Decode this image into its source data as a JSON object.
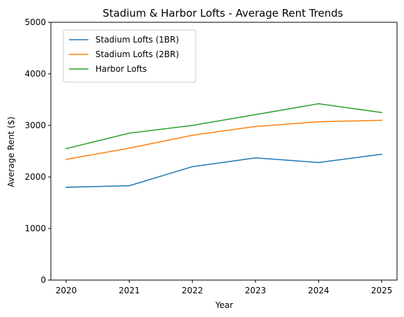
{
  "chart_data": {
    "type": "line",
    "title": "Stadium & Harbor Lofts - Average Rent Trends",
    "xlabel": "Year",
    "ylabel": "Average Rent ($)",
    "x": [
      "2020",
      "2021",
      "2022",
      "2023",
      "2024",
      "2025"
    ],
    "ylim": [
      0,
      5000
    ],
    "yticks": [
      "0",
      "1000",
      "2000",
      "3000",
      "4000",
      "5000"
    ],
    "grid": false,
    "legend_position": "top-left",
    "series": [
      {
        "name": "Stadium Lofts (1BR)",
        "color": "#1f77b4",
        "values": [
          1800,
          1830,
          2200,
          2370,
          2280,
          2440
        ]
      },
      {
        "name": "Stadium Lofts (2BR)",
        "color": "#ff7f0e",
        "values": [
          2340,
          2560,
          2810,
          2980,
          3070,
          3100
        ]
      },
      {
        "name": "Harbor Lofts",
        "color": "#2ca02c",
        "values": [
          2550,
          2850,
          3000,
          3210,
          3420,
          3250
        ]
      }
    ]
  }
}
